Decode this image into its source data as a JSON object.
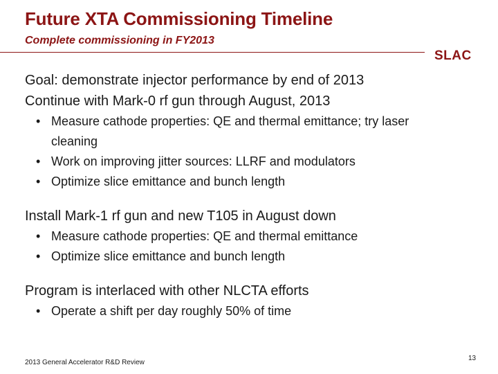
{
  "title": "Future XTA Commissioning Timeline",
  "subtitle": "Complete commissioning in FY2013",
  "logo_text": "SLAC",
  "sections": [
    {
      "lines": [
        "Goal: demonstrate injector performance by end of 2013",
        "Continue with Mark-0 rf gun through August, 2013"
      ],
      "bullets": [
        "Measure cathode properties: QE and thermal emittance; try laser cleaning",
        "Work on improving jitter sources: LLRF and modulators",
        "Optimize slice emittance and bunch length"
      ]
    },
    {
      "lines": [
        "Install Mark-1 rf gun and new T105 in August down"
      ],
      "bullets": [
        "Measure cathode properties: QE and thermal emittance",
        "Optimize slice emittance and bunch length"
      ]
    },
    {
      "lines": [
        "Program is interlaced with other NLCTA efforts"
      ],
      "bullets": [
        "Operate a shift per day roughly 50% of time"
      ]
    }
  ],
  "footer": "2013 General Accelerator R&D Review",
  "page_number": "13",
  "colors": {
    "accent": "#8c1515",
    "text": "#1a1a1a",
    "background": "#ffffff"
  }
}
